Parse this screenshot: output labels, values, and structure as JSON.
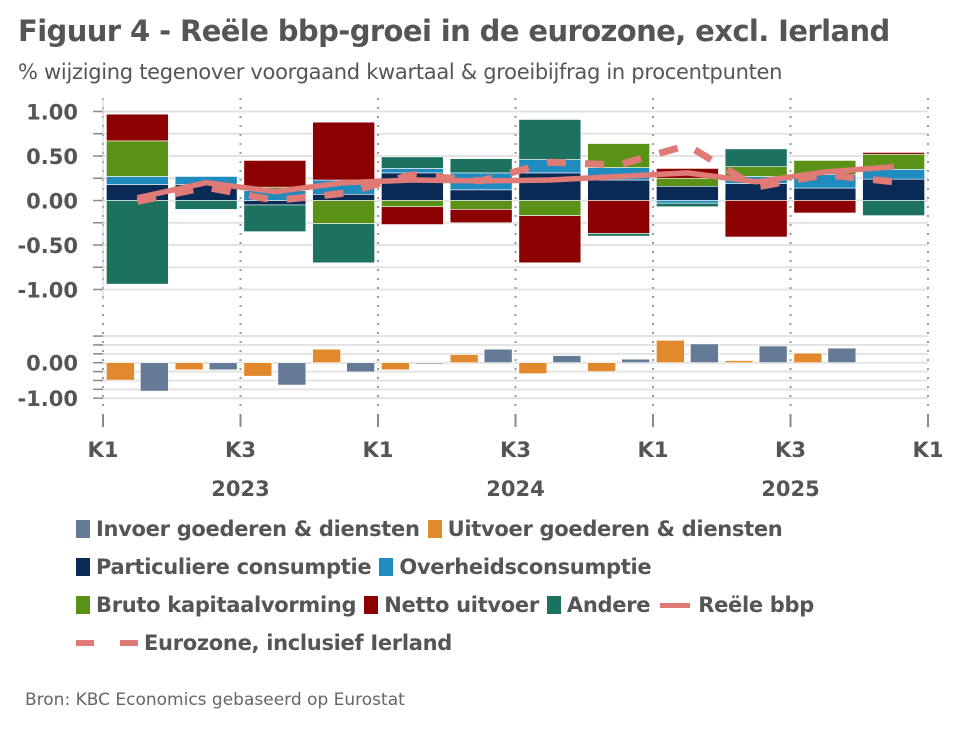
{
  "title": "Figuur 4 - Reële bbp-groei in de eurozone, excl. Ierland",
  "subtitle": "% wijziging tegenover voorgaand kwartaal & groeibijfrag in procentpunten",
  "source": "Bron: KBC Economics gebaseerd op Eurostat",
  "colors": {
    "invoer": "#657A97",
    "uitvoer": "#E2892E",
    "particuliere": "#0A2A56",
    "overheid": "#1F8BBF",
    "bruto": "#5A9217",
    "netto": "#8B0000",
    "andere": "#1C725E",
    "line": "#E07A77"
  },
  "legend": {
    "rows": [
      [
        {
          "key": "invoer",
          "label": "Invoer goederen & diensten",
          "kind": "box"
        },
        {
          "key": "uitvoer",
          "label": "Uitvoer goederen & diensten",
          "kind": "box"
        }
      ],
      [
        {
          "key": "particuliere",
          "label": "Particuliere consumptie",
          "kind": "box"
        },
        {
          "key": "overheid",
          "label": "Overheidsconsumptie",
          "kind": "box"
        }
      ],
      [
        {
          "key": "bruto",
          "label": "Bruto kapitaalvorming",
          "kind": "box"
        },
        {
          "key": "netto",
          "label": "Netto uitvoer",
          "kind": "box"
        },
        {
          "key": "andere",
          "label": "Andere",
          "kind": "box"
        },
        {
          "key": "line",
          "label": "Reële bbp",
          "kind": "line"
        }
      ],
      [
        {
          "key": "line",
          "label": "Eurozone, inclusief Ierland",
          "kind": "dash"
        }
      ]
    ]
  },
  "chart_data": {
    "type": "bar",
    "subtype": "stacked bar with lines, two panels",
    "title": "Figuur 4 - Reële bbp-groei in de eurozone, excl. Ierland",
    "subtitle": "% wijziging tegenover voorgaand kwartaal & groeibijfrag in procentpunten",
    "categories": [
      "2023 K1",
      "2023 K2",
      "2023 K3",
      "2023 K4",
      "2024 K1",
      "2024 K2",
      "2024 K3",
      "2024 K4",
      "2025 K1",
      "2025 K2",
      "2025 K3",
      "2025 K4"
    ],
    "x_tick_labels": [
      {
        "label": "K1",
        "year": "",
        "at_quarter": 0
      },
      {
        "label": "K3",
        "year": "2023",
        "at_quarter": 2
      },
      {
        "label": "K1",
        "year": "",
        "at_quarter": 4
      },
      {
        "label": "K3",
        "year": "2024",
        "at_quarter": 6
      },
      {
        "label": "K1",
        "year": "",
        "at_quarter": 8
      },
      {
        "label": "K3",
        "year": "2025",
        "at_quarter": 10
      },
      {
        "label": "K1",
        "year": "",
        "at_quarter": 12
      }
    ],
    "upper_panel": {
      "ylim": [
        -1.0,
        1.0
      ],
      "grid_step": 0.25,
      "y_tick_labels": [
        "1.00",
        "0.50",
        "0.00",
        "-0.50",
        "-1.00"
      ],
      "y_tick_values": [
        1.0,
        0.5,
        0.0,
        -0.5,
        -1.0
      ],
      "stack_order": [
        "particuliere",
        "overheid",
        "bruto",
        "netto",
        "andere"
      ],
      "series": [
        {
          "key": "particuliere",
          "name": "Particuliere consumptie",
          "values": [
            0.18,
            0.18,
            -0.05,
            0.07,
            0.31,
            0.12,
            0.31,
            0.23,
            0.16,
            0.19,
            0.14,
            0.24
          ]
        },
        {
          "key": "overheid",
          "name": "Overheidsconsumptie",
          "values": [
            0.09,
            0.09,
            0.11,
            0.16,
            0.05,
            0.19,
            0.15,
            0.14,
            -0.03,
            0.08,
            0.15,
            0.11
          ]
        },
        {
          "key": "bruto",
          "name": "Bruto kapitaalvorming",
          "values": [
            0.4,
            0.0,
            0.04,
            -0.26,
            -0.07,
            -0.1,
            -0.17,
            0.27,
            0.09,
            0.11,
            0.16,
            0.17
          ]
        },
        {
          "key": "netto",
          "name": "Netto uitvoer",
          "values": [
            0.3,
            0.0,
            0.3,
            0.65,
            -0.2,
            -0.15,
            -0.53,
            -0.37,
            0.11,
            -0.41,
            -0.14,
            0.02
          ]
        },
        {
          "key": "andere",
          "name": "Andere",
          "values": [
            -0.94,
            -0.1,
            -0.3,
            -0.44,
            0.13,
            0.16,
            0.45,
            -0.03,
            -0.04,
            0.2,
            0.0,
            -0.17
          ]
        }
      ],
      "lines": [
        {
          "key": "reele_bbp",
          "name": "Reële bbp",
          "style": "solid",
          "values": [
            0.03,
            0.2,
            0.1,
            0.2,
            0.23,
            0.22,
            0.23,
            0.27,
            0.31,
            0.21,
            0.32,
            0.38
          ]
        },
        {
          "key": "eurozone_incl_ierland",
          "name": "Eurozone, inclusief Ierland",
          "style": "dashed",
          "values": [
            -0.01,
            0.15,
            0.0,
            0.08,
            0.29,
            0.22,
            0.43,
            0.4,
            0.62,
            0.15,
            0.29,
            0.21
          ]
        }
      ]
    },
    "lower_panel": {
      "ylim": [
        -1.0,
        0.75
      ],
      "grid_step": 0.25,
      "y_tick_labels": [
        "0.00",
        "-1.00"
      ],
      "y_tick_values": [
        0.0,
        -1.0
      ],
      "series": [
        {
          "key": "uitvoer",
          "name": "Uitvoer goederen & diensten",
          "values": [
            -0.49,
            -0.2,
            -0.38,
            0.38,
            -0.2,
            0.23,
            -0.31,
            -0.25,
            0.63,
            0.06,
            0.27,
            null
          ]
        },
        {
          "key": "invoer",
          "name": "Invoer goederen & diensten",
          "values": [
            -0.8,
            -0.2,
            -0.63,
            -0.26,
            -0.03,
            0.38,
            0.2,
            0.1,
            0.53,
            0.47,
            0.41,
            null
          ]
        }
      ]
    },
    "legend_position": "bottom",
    "grid": true
  }
}
